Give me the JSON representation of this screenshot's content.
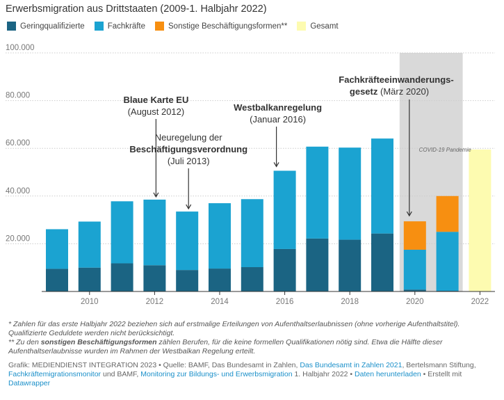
{
  "title": "Erwerbsmigration aus Drittstaaten (2009-1. Halbjahr 2022)",
  "colors": {
    "geringqualifizierte": "#1b6483",
    "fachkraefte": "#1ba3d1",
    "sonstige": "#f78f11",
    "gesamt": "#fdfbb0",
    "shade": "#d9d9d9",
    "grid": "#cccccc"
  },
  "legend": [
    {
      "label": "Geringqualifizierte",
      "color_key": "geringqualifizierte"
    },
    {
      "label": "Fachkräfte",
      "color_key": "fachkraefte"
    },
    {
      "label": "Sonstige Beschäftigungsformen**",
      "color_key": "sonstige"
    },
    {
      "label": "Gesamt",
      "color_key": "gesamt"
    }
  ],
  "chart_data": {
    "type": "bar",
    "stacked": true,
    "categories": [
      "2009",
      "2010",
      "2011",
      "2012",
      "2013",
      "2014",
      "2015",
      "2016",
      "2017",
      "2018",
      "2019",
      "2020",
      "2021",
      "2022"
    ],
    "x_tick_labels": [
      "2010",
      "2012",
      "2014",
      "2016",
      "2018",
      "2020",
      "2022"
    ],
    "y_tick_labels": [
      "100.000",
      "80.000",
      "60.000",
      "40.000",
      "20.000"
    ],
    "y_tick_values": [
      100000,
      80000,
      60000,
      40000,
      20000
    ],
    "ylim": [
      0,
      100000
    ],
    "series": [
      {
        "name": "Geringqualifizierte",
        "color_key": "geringqualifizierte",
        "values": [
          9500,
          10000,
          11800,
          11000,
          9000,
          9600,
          10200,
          17800,
          22200,
          21700,
          24300,
          800,
          300,
          null
        ]
      },
      {
        "name": "Fachkräfte",
        "color_key": "fachkraefte",
        "values": [
          16600,
          19300,
          26000,
          27500,
          24500,
          27400,
          28500,
          32800,
          38500,
          38600,
          39800,
          16700,
          24700,
          null
        ]
      },
      {
        "name": "Sonstige Beschäftigungsformen**",
        "color_key": "sonstige",
        "values": [
          null,
          null,
          null,
          null,
          null,
          null,
          null,
          null,
          null,
          null,
          null,
          11900,
          15000,
          null
        ]
      },
      {
        "name": "Gesamt",
        "color_key": "gesamt",
        "values": [
          null,
          null,
          null,
          null,
          null,
          null,
          null,
          null,
          null,
          null,
          null,
          null,
          null,
          59500
        ]
      }
    ],
    "shaded_region": {
      "from": "2020",
      "to": "2021",
      "label": "COVID-19 Pandemie"
    },
    "annotations": [
      {
        "bold": "Blaue Karte EU",
        "pre": "",
        "line2_bold": "",
        "line2_rest": "",
        "sub": "(August 2012)",
        "target": "2012"
      },
      {
        "bold": "",
        "pre": "Neuregelung der",
        "line2_bold": "Beschäftigungsverordnung",
        "line2_rest": "",
        "sub": "(Juli 2013)",
        "target": "2013"
      },
      {
        "bold": "Westbalkanregelung",
        "pre": "",
        "line2_bold": "",
        "line2_rest": "",
        "sub": "(Januar 2016)",
        "target": "2016"
      },
      {
        "bold": "Fachkräfteeinwanderungs-",
        "pre": "",
        "line2_bold": "gesetz",
        "line2_rest": " (März 2020)",
        "sub": "",
        "target": "2020"
      }
    ]
  },
  "notes": {
    "note1": "* Zahlen für das erste Halbjahr 2022 beziehen sich auf erstmalige Erteilungen von Aufenthaltserlaubnissen (ohne vorherige Aufenthaltstitel). Qualifizierte Geduldete werden nicht berücksichtigt.",
    "note2_prefix": "** Zu den ",
    "note2_bold": "sonstigen Beschäftigungsformen",
    "note2_suffix": " zählen Berufen, für die keine formellen Qualifikationen nötig sind. Etwa die Hälfte dieser Aufenthaltserlaubnisse wurden im Rahmen der Westbalkan Regelung erteilt."
  },
  "source": {
    "s1": "Grafik: MEDIENDIENST INTEGRATION 2023 • Quelle: BAMF, Das Bundesamt in Zahlen, ",
    "link1": "Das Bundesamt in Zahlen 2021",
    "s2": ", Bertelsmann Stiftung, ",
    "link2": "Fachkräftemigrationsmonitor",
    "s3": " und BAMF, ",
    "link3": "Monitoring zur Bildungs- und Erwerbsmigration",
    "s4": " 1. Halbjahr 2022 • ",
    "link4": "Daten herunterladen",
    "s5": " • Erstellt mit ",
    "link5": "Datawrapper"
  }
}
